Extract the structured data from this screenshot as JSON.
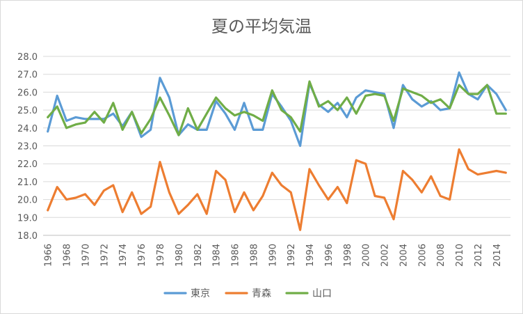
{
  "chart_data": {
    "type": "line",
    "title": "夏の平均気温",
    "xlabel": "",
    "ylabel": "",
    "ylim": [
      18.0,
      28.0
    ],
    "y_ticks": [
      "18.0",
      "19.0",
      "20.0",
      "21.0",
      "22.0",
      "23.0",
      "24.0",
      "25.0",
      "26.0",
      "27.0",
      "28.0"
    ],
    "x_tick_labels": [
      "1966",
      "1968",
      "1970",
      "1972",
      "1974",
      "1976",
      "1978",
      "1980",
      "1982",
      "1984",
      "1986",
      "1988",
      "1990",
      "1992",
      "1994",
      "1996",
      "1998",
      "2000",
      "2002",
      "2004",
      "2006",
      "2008",
      "2010",
      "2012",
      "2014"
    ],
    "x": [
      1966,
      1967,
      1968,
      1969,
      1970,
      1971,
      1972,
      1973,
      1974,
      1975,
      1976,
      1977,
      1978,
      1979,
      1980,
      1981,
      1982,
      1983,
      1984,
      1985,
      1986,
      1987,
      1988,
      1989,
      1990,
      1991,
      1992,
      1993,
      1994,
      1995,
      1996,
      1997,
      1998,
      1999,
      2000,
      2001,
      2002,
      2003,
      2004,
      2005,
      2006,
      2007,
      2008,
      2009,
      2010,
      2011,
      2012,
      2013,
      2014,
      2015
    ],
    "grid": true,
    "legend_position": "bottom",
    "series": [
      {
        "name": "東京",
        "color": "#5B9BD5",
        "values": [
          23.8,
          25.8,
          24.4,
          24.6,
          24.5,
          24.5,
          24.5,
          24.8,
          24.1,
          24.9,
          23.5,
          23.9,
          26.8,
          25.7,
          23.6,
          24.2,
          23.9,
          23.9,
          25.5,
          24.8,
          23.9,
          25.4,
          23.9,
          23.9,
          25.9,
          25.2,
          24.4,
          23.0,
          26.5,
          25.3,
          24.9,
          25.4,
          24.6,
          25.7,
          26.1,
          26.0,
          25.9,
          24.0,
          26.4,
          25.6,
          25.2,
          25.5,
          25.0,
          25.1,
          27.1,
          25.9,
          25.6,
          26.4,
          25.9,
          25.0
        ]
      },
      {
        "name": "青森",
        "color": "#ED7D31",
        "values": [
          19.4,
          20.7,
          20.0,
          20.1,
          20.3,
          19.7,
          20.5,
          20.8,
          19.3,
          20.4,
          19.2,
          19.6,
          22.1,
          20.4,
          19.2,
          19.7,
          20.3,
          19.2,
          21.6,
          21.1,
          19.3,
          20.4,
          19.4,
          20.2,
          21.5,
          20.8,
          20.4,
          18.3,
          21.7,
          20.8,
          20.0,
          20.7,
          19.8,
          22.2,
          22.0,
          20.2,
          20.1,
          18.9,
          21.6,
          21.1,
          20.4,
          21.3,
          20.2,
          20.0,
          22.8,
          21.7,
          21.4,
          21.5,
          21.6,
          21.5
        ]
      },
      {
        "name": "山口",
        "color": "#70AD47",
        "values": [
          24.6,
          25.2,
          24.0,
          24.2,
          24.3,
          24.9,
          24.3,
          25.4,
          23.9,
          24.9,
          23.7,
          24.5,
          25.7,
          24.7,
          23.6,
          25.1,
          23.9,
          24.8,
          25.7,
          25.1,
          24.7,
          24.9,
          24.7,
          24.4,
          26.1,
          25.0,
          24.6,
          23.8,
          26.6,
          25.2,
          25.5,
          25.0,
          25.7,
          24.8,
          25.8,
          25.9,
          25.8,
          24.4,
          26.2,
          26.0,
          25.8,
          25.4,
          25.6,
          25.1,
          26.4,
          25.9,
          25.9,
          26.4,
          24.8,
          24.8
        ]
      }
    ]
  }
}
